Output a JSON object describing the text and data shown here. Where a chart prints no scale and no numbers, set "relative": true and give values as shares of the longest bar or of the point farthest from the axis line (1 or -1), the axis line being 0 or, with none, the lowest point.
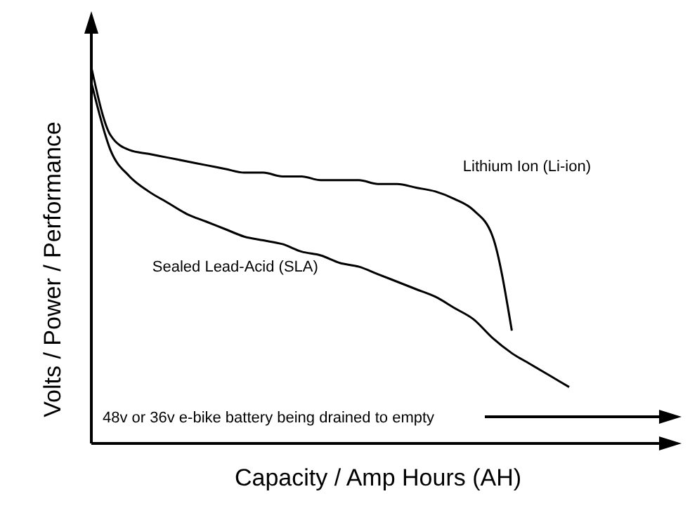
{
  "chart_data": {
    "type": "line",
    "relative": true,
    "xlabel": "Capacity / Amp Hours (AH)",
    "ylabel": "Volts / Power / Performance",
    "categories": [
      null,
      null,
      null,
      null,
      null,
      null,
      null,
      null,
      null,
      null,
      null,
      null,
      null,
      null,
      null,
      null,
      null,
      null,
      null,
      null,
      null,
      null,
      null,
      null,
      null,
      null,
      null,
      null,
      null,
      null,
      null
    ],
    "series": [
      {
        "name": "Lithium Ion (Li-ion)",
        "color": "#000000",
        "values": [
          1.0,
          0.82,
          0.78,
          0.77,
          0.76,
          0.75,
          0.74,
          0.73,
          0.72,
          0.72,
          0.71,
          0.71,
          0.7,
          0.7,
          0.7,
          0.69,
          0.69,
          0.68,
          0.67,
          0.65,
          0.62,
          0.55,
          0.3,
          null,
          null,
          null,
          null,
          null,
          null,
          null,
          null
        ]
      },
      {
        "name": "Sealed Lead-Acid (SLA)",
        "color": "#000000",
        "values": [
          0.96,
          0.78,
          0.71,
          0.67,
          0.64,
          0.61,
          0.59,
          0.57,
          0.55,
          0.54,
          0.53,
          0.51,
          0.5,
          0.48,
          0.47,
          0.45,
          0.43,
          0.41,
          0.39,
          0.36,
          0.33,
          0.28,
          0.24,
          0.21,
          0.18,
          0.15,
          null,
          null,
          null,
          null,
          null
        ]
      }
    ],
    "annotations": [
      "48v or 36v e-bike battery being drained to empty"
    ],
    "legend": false,
    "grid": false,
    "marker": "none",
    "line_style": "solid"
  }
}
